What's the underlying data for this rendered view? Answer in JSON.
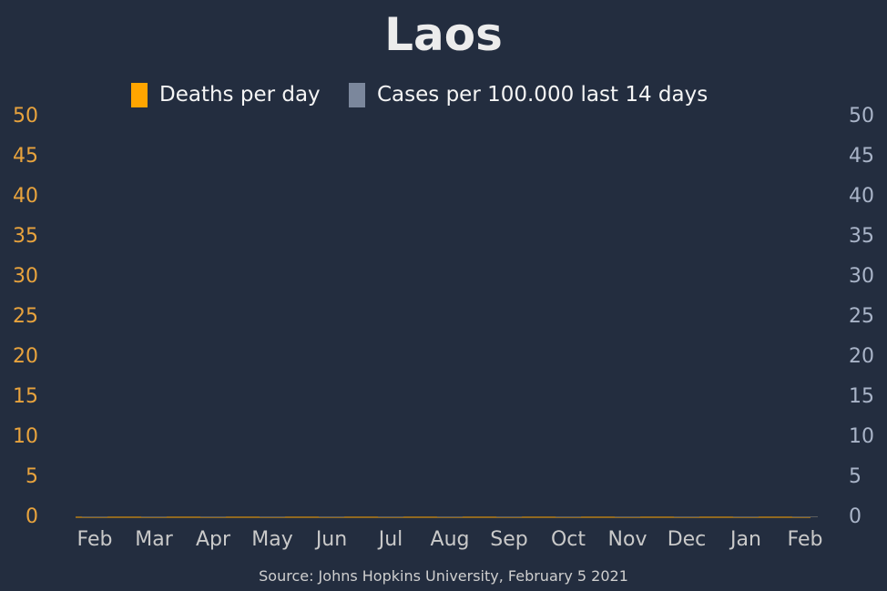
{
  "chart_data": {
    "type": "bar",
    "title": "Laos",
    "source": "Source: Johns Hopkins University, February 5 2021",
    "legend": {
      "placement": "top-center",
      "items": [
        {
          "label": "Deaths per day",
          "color": "#ffa500"
        },
        {
          "label": "Cases per 100.000 last 14 days",
          "color": "#7b879c"
        }
      ]
    },
    "x_tick_labels": [
      "Feb",
      "Mar",
      "Apr",
      "May",
      "Jun",
      "Jul",
      "Aug",
      "Sep",
      "Oct",
      "Nov",
      "Dec",
      "Jan",
      "Feb"
    ],
    "y_left": {
      "ticks": [
        0,
        5,
        10,
        15,
        20,
        25,
        30,
        35,
        40,
        45,
        50
      ],
      "ylim": [
        0,
        50
      ],
      "color": "#e8a33d"
    },
    "y_right": {
      "ticks": [
        0,
        5,
        10,
        15,
        20,
        25,
        30,
        35,
        40,
        45,
        50
      ],
      "ylim": [
        0,
        50
      ],
      "color": "#a9b4c8"
    },
    "series": [
      {
        "name": "Deaths per day",
        "axis": "left",
        "values": [
          0,
          0,
          0,
          0,
          0,
          0,
          0,
          0,
          0,
          0,
          0,
          0,
          0
        ]
      },
      {
        "name": "Cases per 100.000 last 14 days",
        "axis": "right",
        "values": [
          0,
          0,
          0.02,
          0,
          0,
          0,
          0,
          0,
          0,
          0,
          0.03,
          0,
          0
        ]
      }
    ],
    "grid": false
  },
  "colors": {
    "background": "#232d3f",
    "title": "#ececec",
    "legend_text": "#f5f5f5",
    "x_tick": "#c9c9c9",
    "source": "#cfcfcf",
    "baseline": "#ffa500"
  }
}
